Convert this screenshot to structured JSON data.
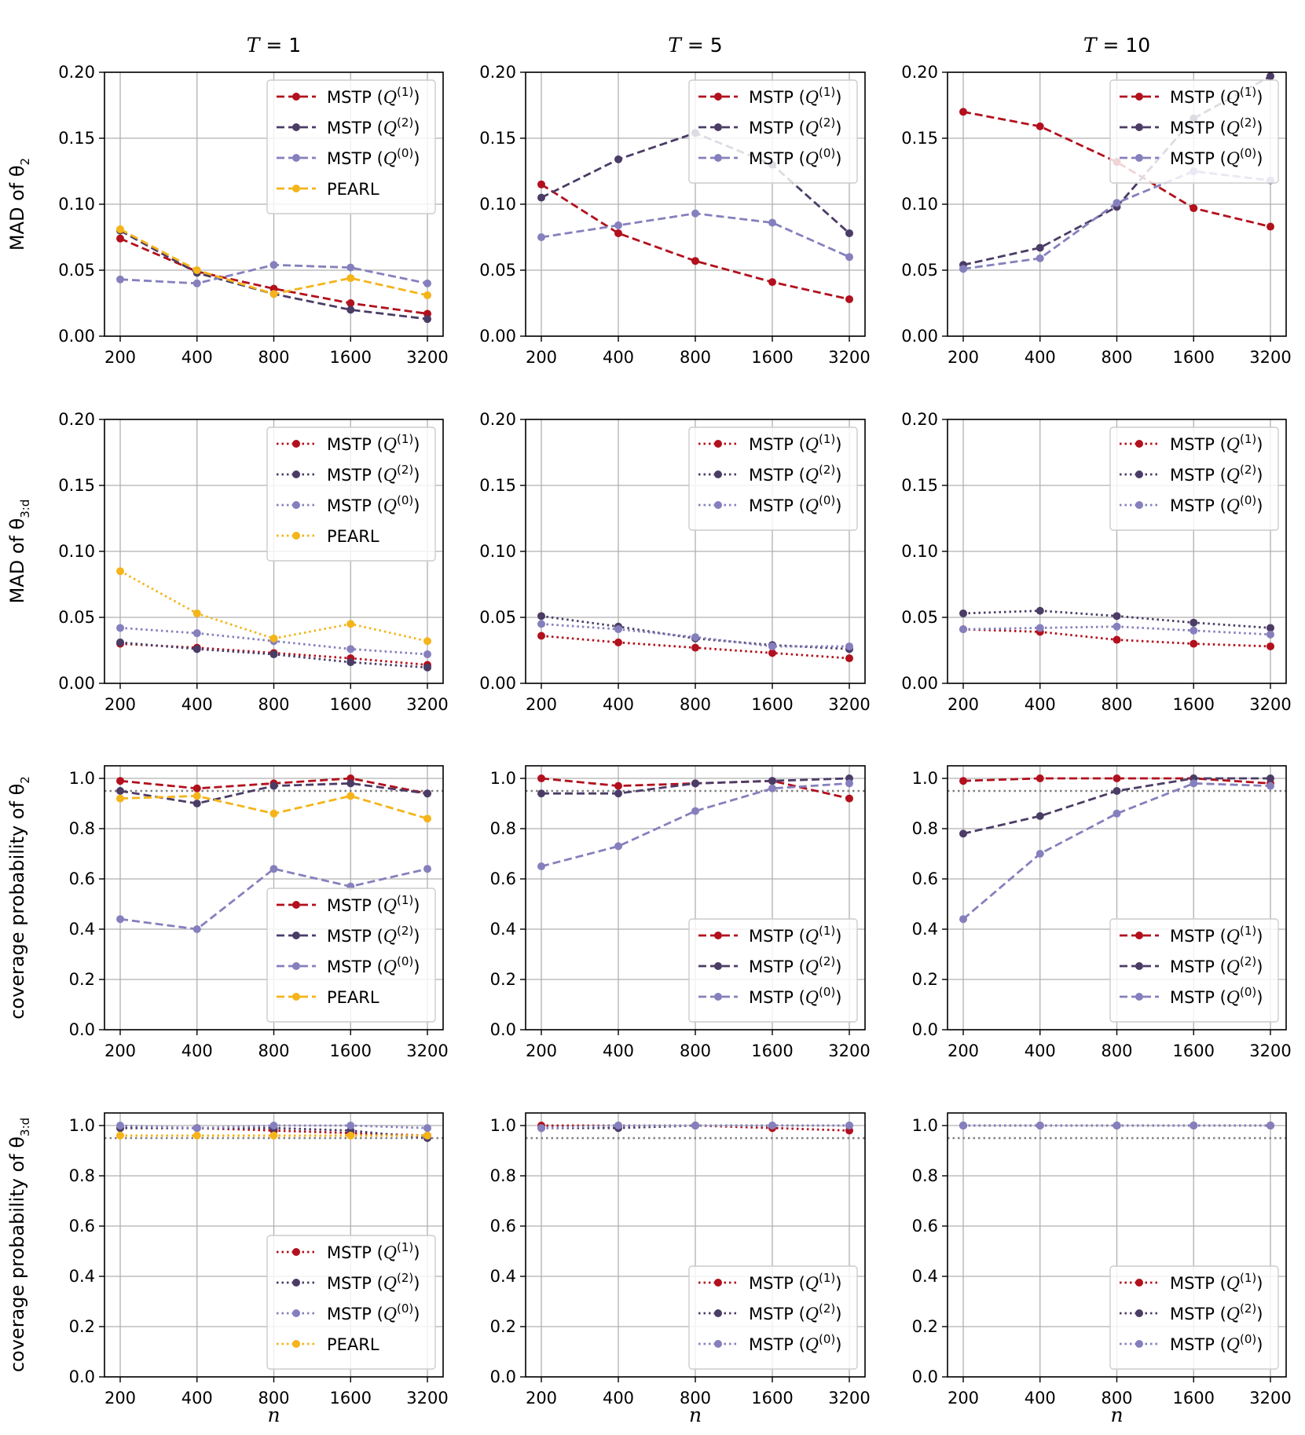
{
  "colors": {
    "mstp_q1": "#b2101d",
    "mstp_q2": "#4b3c66",
    "mstp_q0": "#8580bd",
    "pearl": "#f4b41a",
    "grid": "#b0b0b0",
    "ref_line": "#808080"
  },
  "columns": [
    {
      "title_sym": "T",
      "title_rest": " = 1"
    },
    {
      "title_sym": "T",
      "title_rest": " = 5"
    },
    {
      "title_sym": "T",
      "title_rest": " = 10"
    }
  ],
  "x_axis_label": "n",
  "rows": [
    {
      "ylabel": "MAD of θ",
      "ylabel_sub": "2"
    },
    {
      "ylabel": "MAD of θ",
      "ylabel_sub": "3:d"
    },
    {
      "ylabel": "coverage probability of θ",
      "ylabel_sub": "2"
    },
    {
      "ylabel": "coverage probability of θ",
      "ylabel_sub": "3:d"
    }
  ],
  "legend_labels": {
    "mstp_prefix": "MSTP (",
    "q_sym": "Q",
    "q1_sup": "(1)",
    "q2_sup": "(2)",
    "q0_sup": "(0)",
    "suffix": ")",
    "pearl": "PEARL"
  },
  "chart_data": [
    {
      "type": "line",
      "row": 0,
      "col": 0,
      "title": "T = 1",
      "ylabel": "MAD of θ2",
      "xlabel": "",
      "categories": [
        "200",
        "400",
        "800",
        "1600",
        "3200"
      ],
      "ylim": [
        0,
        0.2
      ],
      "yticks": [
        "0.00",
        "0.05",
        "0.10",
        "0.15",
        "0.20"
      ],
      "linestyle": "dashed",
      "legend_position": "top-right",
      "series": [
        {
          "name": "MSTP (Q(1))",
          "key": "mstp_q1",
          "values": [
            0.074,
            0.049,
            0.036,
            0.025,
            0.017
          ]
        },
        {
          "name": "MSTP (Q(2))",
          "key": "mstp_q2",
          "values": [
            0.08,
            0.048,
            0.032,
            0.02,
            0.013
          ]
        },
        {
          "name": "MSTP (Q(0))",
          "key": "mstp_q0",
          "values": [
            0.043,
            0.04,
            0.054,
            0.052,
            0.04
          ]
        },
        {
          "name": "PEARL",
          "key": "pearl",
          "values": [
            0.081,
            0.05,
            0.032,
            0.044,
            0.031
          ]
        }
      ]
    },
    {
      "type": "line",
      "row": 0,
      "col": 1,
      "title": "T = 5",
      "ylabel": "",
      "xlabel": "",
      "categories": [
        "200",
        "400",
        "800",
        "1600",
        "3200"
      ],
      "ylim": [
        0,
        0.2
      ],
      "yticks": [
        "0.00",
        "0.05",
        "0.10",
        "0.15",
        "0.20"
      ],
      "linestyle": "dashed",
      "legend_position": "top-right",
      "series": [
        {
          "name": "MSTP (Q(1))",
          "key": "mstp_q1",
          "values": [
            0.115,
            0.078,
            0.057,
            0.041,
            0.028
          ]
        },
        {
          "name": "MSTP (Q(2))",
          "key": "mstp_q2",
          "values": [
            0.105,
            0.134,
            0.154,
            0.13,
            0.078
          ]
        },
        {
          "name": "MSTP (Q(0))",
          "key": "mstp_q0",
          "values": [
            0.075,
            0.084,
            0.093,
            0.086,
            0.06
          ]
        }
      ]
    },
    {
      "type": "line",
      "row": 0,
      "col": 2,
      "title": "T = 10",
      "ylabel": "",
      "xlabel": "",
      "categories": [
        "200",
        "400",
        "800",
        "1600",
        "3200"
      ],
      "ylim": [
        0,
        0.2
      ],
      "yticks": [
        "0.00",
        "0.05",
        "0.10",
        "0.15",
        "0.20"
      ],
      "linestyle": "dashed",
      "legend_position": "top-right",
      "series": [
        {
          "name": "MSTP (Q(1))",
          "key": "mstp_q1",
          "values": [
            0.17,
            0.159,
            0.132,
            0.097,
            0.083
          ]
        },
        {
          "name": "MSTP (Q(2))",
          "key": "mstp_q2",
          "values": [
            0.054,
            0.067,
            0.098,
            0.165,
            0.197
          ]
        },
        {
          "name": "MSTP (Q(0))",
          "key": "mstp_q0",
          "values": [
            0.051,
            0.059,
            0.101,
            0.125,
            0.118
          ]
        }
      ]
    },
    {
      "type": "line",
      "row": 1,
      "col": 0,
      "title": "",
      "ylabel": "MAD of θ3:d",
      "xlabel": "",
      "categories": [
        "200",
        "400",
        "800",
        "1600",
        "3200"
      ],
      "ylim": [
        0,
        0.2
      ],
      "yticks": [
        "0.00",
        "0.05",
        "0.10",
        "0.15",
        "0.20"
      ],
      "linestyle": "dotted",
      "legend_position": "top-right",
      "series": [
        {
          "name": "MSTP (Q(1))",
          "key": "mstp_q1",
          "values": [
            0.03,
            0.027,
            0.023,
            0.019,
            0.014
          ]
        },
        {
          "name": "MSTP (Q(2))",
          "key": "mstp_q2",
          "values": [
            0.031,
            0.026,
            0.022,
            0.016,
            0.012
          ]
        },
        {
          "name": "MSTP (Q(0))",
          "key": "mstp_q0",
          "values": [
            0.042,
            0.038,
            0.032,
            0.026,
            0.022
          ]
        },
        {
          "name": "PEARL",
          "key": "pearl",
          "values": [
            0.085,
            0.053,
            0.034,
            0.045,
            0.032
          ]
        }
      ]
    },
    {
      "type": "line",
      "row": 1,
      "col": 1,
      "title": "",
      "ylabel": "",
      "xlabel": "",
      "categories": [
        "200",
        "400",
        "800",
        "1600",
        "3200"
      ],
      "ylim": [
        0,
        0.2
      ],
      "yticks": [
        "0.00",
        "0.05",
        "0.10",
        "0.15",
        "0.20"
      ],
      "linestyle": "dotted",
      "legend_position": "top-right",
      "series": [
        {
          "name": "MSTP (Q(1))",
          "key": "mstp_q1",
          "values": [
            0.036,
            0.031,
            0.027,
            0.023,
            0.019
          ]
        },
        {
          "name": "MSTP (Q(2))",
          "key": "mstp_q2",
          "values": [
            0.051,
            0.043,
            0.034,
            0.029,
            0.026
          ]
        },
        {
          "name": "MSTP (Q(0))",
          "key": "mstp_q0",
          "values": [
            0.045,
            0.041,
            0.035,
            0.028,
            0.028
          ]
        }
      ]
    },
    {
      "type": "line",
      "row": 1,
      "col": 2,
      "title": "",
      "ylabel": "",
      "xlabel": "",
      "categories": [
        "200",
        "400",
        "800",
        "1600",
        "3200"
      ],
      "ylim": [
        0,
        0.2
      ],
      "yticks": [
        "0.00",
        "0.05",
        "0.10",
        "0.15",
        "0.20"
      ],
      "linestyle": "dotted",
      "legend_position": "top-right",
      "series": [
        {
          "name": "MSTP (Q(1))",
          "key": "mstp_q1",
          "values": [
            0.041,
            0.039,
            0.033,
            0.03,
            0.028
          ]
        },
        {
          "name": "MSTP (Q(2))",
          "key": "mstp_q2",
          "values": [
            0.053,
            0.055,
            0.051,
            0.046,
            0.042
          ]
        },
        {
          "name": "MSTP (Q(0))",
          "key": "mstp_q0",
          "values": [
            0.041,
            0.042,
            0.043,
            0.04,
            0.037
          ]
        }
      ]
    },
    {
      "type": "line",
      "row": 2,
      "col": 0,
      "title": "",
      "ylabel": "coverage probability of θ2",
      "xlabel": "",
      "categories": [
        "200",
        "400",
        "800",
        "1600",
        "3200"
      ],
      "ylim": [
        0,
        1.05
      ],
      "yticks": [
        "0.0",
        "0.2",
        "0.4",
        "0.6",
        "0.8",
        "1.0"
      ],
      "reference_line": 0.95,
      "linestyle": "dashed",
      "legend_position": "lower-right",
      "series": [
        {
          "name": "MSTP (Q(1))",
          "key": "mstp_q1",
          "values": [
            0.99,
            0.96,
            0.98,
            1.0,
            0.94
          ]
        },
        {
          "name": "MSTP (Q(2))",
          "key": "mstp_q2",
          "values": [
            0.95,
            0.9,
            0.97,
            0.98,
            0.94
          ]
        },
        {
          "name": "MSTP (Q(0))",
          "key": "mstp_q0",
          "values": [
            0.44,
            0.4,
            0.64,
            0.57,
            0.64
          ]
        },
        {
          "name": "PEARL",
          "key": "pearl",
          "values": [
            0.92,
            0.93,
            0.86,
            0.93,
            0.84
          ]
        }
      ]
    },
    {
      "type": "line",
      "row": 2,
      "col": 1,
      "title": "",
      "ylabel": "",
      "xlabel": "",
      "categories": [
        "200",
        "400",
        "800",
        "1600",
        "3200"
      ],
      "ylim": [
        0,
        1.05
      ],
      "yticks": [
        "0.0",
        "0.2",
        "0.4",
        "0.6",
        "0.8",
        "1.0"
      ],
      "reference_line": 0.95,
      "linestyle": "dashed",
      "legend_position": "lower-right",
      "series": [
        {
          "name": "MSTP (Q(1))",
          "key": "mstp_q1",
          "values": [
            1.0,
            0.97,
            0.98,
            0.99,
            0.92
          ]
        },
        {
          "name": "MSTP (Q(2))",
          "key": "mstp_q2",
          "values": [
            0.94,
            0.94,
            0.98,
            0.99,
            1.0
          ]
        },
        {
          "name": "MSTP (Q(0))",
          "key": "mstp_q0",
          "values": [
            0.65,
            0.73,
            0.87,
            0.96,
            0.98
          ]
        }
      ]
    },
    {
      "type": "line",
      "row": 2,
      "col": 2,
      "title": "",
      "ylabel": "",
      "xlabel": "",
      "categories": [
        "200",
        "400",
        "800",
        "1600",
        "3200"
      ],
      "ylim": [
        0,
        1.05
      ],
      "yticks": [
        "0.0",
        "0.2",
        "0.4",
        "0.6",
        "0.8",
        "1.0"
      ],
      "reference_line": 0.95,
      "linestyle": "dashed",
      "legend_position": "lower-right",
      "series": [
        {
          "name": "MSTP (Q(1))",
          "key": "mstp_q1",
          "values": [
            0.99,
            1.0,
            1.0,
            1.0,
            0.98
          ]
        },
        {
          "name": "MSTP (Q(2))",
          "key": "mstp_q2",
          "values": [
            0.78,
            0.85,
            0.95,
            1.0,
            1.0
          ]
        },
        {
          "name": "MSTP (Q(0))",
          "key": "mstp_q0",
          "values": [
            0.44,
            0.7,
            0.86,
            0.98,
            0.97
          ]
        }
      ]
    },
    {
      "type": "line",
      "row": 3,
      "col": 0,
      "title": "",
      "ylabel": "coverage probability of θ3:d",
      "xlabel": "n",
      "categories": [
        "200",
        "400",
        "800",
        "1600",
        "3200"
      ],
      "ylim": [
        0,
        1.05
      ],
      "yticks": [
        "0.0",
        "0.2",
        "0.4",
        "0.6",
        "0.8",
        "1.0"
      ],
      "reference_line": 0.95,
      "linestyle": "dotted",
      "legend_position": "lower-right",
      "series": [
        {
          "name": "MSTP (Q(1))",
          "key": "mstp_q1",
          "values": [
            0.99,
            0.99,
            0.98,
            0.97,
            0.96
          ]
        },
        {
          "name": "MSTP (Q(2))",
          "key": "mstp_q2",
          "values": [
            0.99,
            0.99,
            0.99,
            0.98,
            0.95
          ]
        },
        {
          "name": "MSTP (Q(0))",
          "key": "mstp_q0",
          "values": [
            1.0,
            0.99,
            1.0,
            1.0,
            0.99
          ]
        },
        {
          "name": "PEARL",
          "key": "pearl",
          "values": [
            0.96,
            0.96,
            0.96,
            0.96,
            0.96
          ]
        }
      ]
    },
    {
      "type": "line",
      "row": 3,
      "col": 1,
      "title": "",
      "ylabel": "",
      "xlabel": "n",
      "categories": [
        "200",
        "400",
        "800",
        "1600",
        "3200"
      ],
      "ylim": [
        0,
        1.05
      ],
      "yticks": [
        "0.0",
        "0.2",
        "0.4",
        "0.6",
        "0.8",
        "1.0"
      ],
      "reference_line": 0.95,
      "linestyle": "dotted",
      "legend_position": "lower-right",
      "series": [
        {
          "name": "MSTP (Q(1))",
          "key": "mstp_q1",
          "values": [
            1.0,
            1.0,
            1.0,
            0.99,
            0.98
          ]
        },
        {
          "name": "MSTP (Q(2))",
          "key": "mstp_q2",
          "values": [
            0.99,
            0.99,
            1.0,
            1.0,
            1.0
          ]
        },
        {
          "name": "MSTP (Q(0))",
          "key": "mstp_q0",
          "values": [
            0.99,
            1.0,
            1.0,
            1.0,
            1.0
          ]
        }
      ]
    },
    {
      "type": "line",
      "row": 3,
      "col": 2,
      "title": "",
      "ylabel": "",
      "xlabel": "n",
      "categories": [
        "200",
        "400",
        "800",
        "1600",
        "3200"
      ],
      "ylim": [
        0,
        1.05
      ],
      "yticks": [
        "0.0",
        "0.2",
        "0.4",
        "0.6",
        "0.8",
        "1.0"
      ],
      "reference_line": 0.95,
      "linestyle": "dotted",
      "legend_position": "lower-right",
      "series": [
        {
          "name": "MSTP (Q(1))",
          "key": "mstp_q1",
          "values": [
            1.0,
            1.0,
            1.0,
            1.0,
            1.0
          ]
        },
        {
          "name": "MSTP (Q(2))",
          "key": "mstp_q2",
          "values": [
            1.0,
            1.0,
            1.0,
            1.0,
            1.0
          ]
        },
        {
          "name": "MSTP (Q(0))",
          "key": "mstp_q0",
          "values": [
            1.0,
            1.0,
            1.0,
            1.0,
            1.0
          ]
        }
      ]
    }
  ]
}
